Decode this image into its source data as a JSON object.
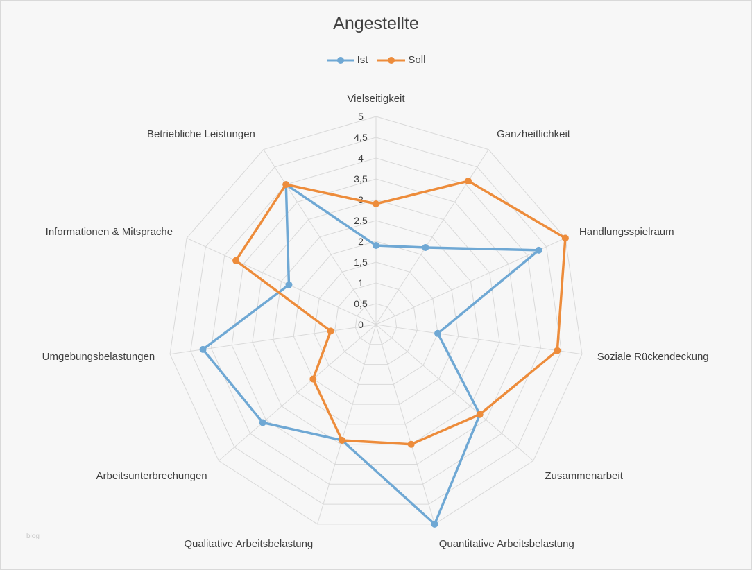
{
  "chart_data": {
    "type": "radar",
    "title": "Angestellte",
    "categories": [
      "Vielseitigkeit",
      "Ganzheitlichkeit",
      "Handlungsspielraum",
      "Soziale Rückendeckung",
      "Zusammenarbeit",
      "Quantitative Arbeitsbelastung",
      "Qualitative Arbeitsbelastung",
      "Arbeitsunterbrechungen",
      "Umgebungsbelastungen",
      "Informationen & Mitsprache",
      "Betriebliche Leistungen"
    ],
    "ticks": [
      "0",
      "0,5",
      "1",
      "1,5",
      "2",
      "2,5",
      "3",
      "3,5",
      "4",
      "4,5",
      "5"
    ],
    "rmax": 5,
    "series": [
      {
        "name": "Ist",
        "color": "#6fa8d4",
        "values": [
          1.9,
          2.2,
          4.3,
          1.5,
          3.3,
          5.0,
          2.9,
          3.6,
          4.2,
          2.3,
          4.0
        ]
      },
      {
        "name": "Soll",
        "color": "#ed8c3b",
        "values": [
          2.9,
          4.1,
          5.0,
          4.4,
          3.3,
          3.0,
          2.9,
          2.0,
          1.1,
          3.7,
          4.0
        ]
      }
    ],
    "legend_position": "top",
    "grid": true
  },
  "watermark": "blog"
}
